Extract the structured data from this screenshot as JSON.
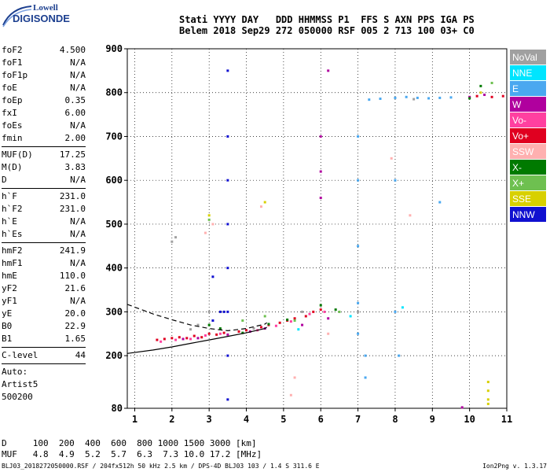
{
  "logo": {
    "line1": "Lowell",
    "line2": "DIGISONDE"
  },
  "header": {
    "line1": "Stati YYYY DAY   DDD HHMMSS P1  FFS S AXN PPS IGA PS",
    "line2": "Belem 2018 Sep29 272 050000 RSF 005 2 713 100 03+ C0"
  },
  "params": {
    "group1": [
      {
        "label": "foF2",
        "value": "4.500"
      },
      {
        "label": "foF1",
        "value": "N/A"
      },
      {
        "label": "foF1p",
        "value": "N/A"
      },
      {
        "label": "foE",
        "value": "N/A"
      },
      {
        "label": "foEp",
        "value": "0.35"
      },
      {
        "label": "fxI",
        "value": "6.00"
      },
      {
        "label": "foEs",
        "value": "N/A"
      },
      {
        "label": "fmin",
        "value": "2.00"
      }
    ],
    "group2": [
      {
        "label": "MUF(D)",
        "value": "17.25"
      },
      {
        "label": "M(D)",
        "value": "3.83"
      },
      {
        "label": "D",
        "value": "N/A"
      }
    ],
    "group3": [
      {
        "label": "h`F",
        "value": "231.0"
      },
      {
        "label": "h`F2",
        "value": "231.0"
      },
      {
        "label": "h`E",
        "value": "N/A"
      },
      {
        "label": "h`Es",
        "value": "N/A"
      }
    ],
    "group4": [
      {
        "label": "hmF2",
        "value": "241.9"
      },
      {
        "label": "hmF1",
        "value": "N/A"
      },
      {
        "label": "hmE",
        "value": "110.0"
      },
      {
        "label": "yF2",
        "value": "21.6"
      },
      {
        "label": "yF1",
        "value": "N/A"
      },
      {
        "label": "yE",
        "value": "20.0"
      },
      {
        "label": "B0",
        "value": "22.9"
      },
      {
        "label": "B1",
        "value": "1.65"
      }
    ],
    "group5": [
      {
        "label": "C-level",
        "value": "44"
      }
    ],
    "auto": [
      "Auto:",
      "Artist5",
      "500200"
    ]
  },
  "legend": [
    {
      "label": "NoVal",
      "color": "#a0a0a0"
    },
    {
      "label": "NNE",
      "color": "#00e5ff"
    },
    {
      "label": "E",
      "color": "#4aa8f0"
    },
    {
      "label": "W",
      "color": "#b0009e"
    },
    {
      "label": "Vo-",
      "color": "#ff40a0"
    },
    {
      "label": "Vo+",
      "color": "#e00020"
    },
    {
      "label": "SSW",
      "color": "#ffb0b0"
    },
    {
      "label": "X-",
      "color": "#007a00"
    },
    {
      "label": "X+",
      "color": "#6ec050"
    },
    {
      "label": "SSE",
      "color": "#d8d000"
    },
    {
      "label": "NNW",
      "color": "#1010d0"
    }
  ],
  "footer": {
    "d_line": "D     100  200  400  600  800 1000 1500 3000 [km]",
    "muf_line": "MUF   4.8  4.9  5.2  5.7  6.3  7.3 10.0 17.2 [MHz]",
    "file_line": "BLJ03_2018272050000.RSF / 204fx512h 50 kHz 2.5 km / DPS-4D BLJ03 103 / 1.4 S 311.6 E",
    "version": "Ion2Png v. 1.3.17"
  },
  "chart_data": {
    "type": "scatter",
    "title": "",
    "xlabel": "",
    "ylabel": "",
    "xlim": [
      0.8,
      11
    ],
    "ylim": [
      80,
      900
    ],
    "x_ticks": [
      "1",
      "2",
      "3",
      "4",
      "5",
      "6",
      "7",
      "8",
      "9",
      "10",
      "11"
    ],
    "y_ticks": [
      "80",
      "200",
      "300",
      "400",
      "500",
      "600",
      "700",
      "800",
      "900"
    ],
    "grid": true,
    "series": [
      {
        "name": "Vo+",
        "color": "#e00020",
        "points": [
          [
            1.6,
            236
          ],
          [
            1.8,
            238
          ],
          [
            2.0,
            240
          ],
          [
            2.2,
            242
          ],
          [
            2.4,
            240
          ],
          [
            2.6,
            245
          ],
          [
            2.8,
            242
          ],
          [
            3.0,
            250
          ],
          [
            3.2,
            248
          ],
          [
            3.4,
            252
          ],
          [
            3.8,
            255
          ],
          [
            4.0,
            258
          ],
          [
            4.2,
            262
          ],
          [
            4.4,
            265
          ],
          [
            4.6,
            270
          ],
          [
            4.9,
            275
          ],
          [
            5.1,
            280
          ],
          [
            5.3,
            285
          ],
          [
            5.6,
            290
          ],
          [
            5.8,
            300
          ],
          [
            6.0,
            305
          ],
          [
            10.2,
            792
          ],
          [
            10.6,
            790
          ],
          [
            10.9,
            792
          ]
        ]
      },
      {
        "name": "Vo-",
        "color": "#ff40a0",
        "points": [
          [
            1.7,
            232
          ],
          [
            2.1,
            236
          ],
          [
            2.5,
            238
          ],
          [
            2.9,
            246
          ],
          [
            3.3,
            250
          ],
          [
            4.3,
            258
          ],
          [
            4.8,
            268
          ],
          [
            5.2,
            278
          ],
          [
            5.7,
            295
          ],
          [
            6.1,
            300
          ]
        ]
      },
      {
        "name": "W",
        "color": "#b0009e",
        "points": [
          [
            2.3,
            238
          ],
          [
            2.7,
            240
          ],
          [
            3.5,
            248
          ],
          [
            4.1,
            255
          ],
          [
            4.5,
            262
          ],
          [
            5.5,
            270
          ],
          [
            6.2,
            285
          ],
          [
            6.0,
            700
          ],
          [
            6.0,
            620
          ],
          [
            6.0,
            560
          ],
          [
            6.2,
            850
          ],
          [
            9.8,
            82
          ],
          [
            10.0,
            790
          ],
          [
            10.4,
            795
          ]
        ]
      },
      {
        "name": "E",
        "color": "#4aa8f0",
        "points": [
          [
            7.0,
            250
          ],
          [
            7.0,
            320
          ],
          [
            7.0,
            450
          ],
          [
            7.0,
            600
          ],
          [
            7.0,
            700
          ],
          [
            7.2,
            150
          ],
          [
            7.2,
            200
          ],
          [
            7.3,
            784
          ],
          [
            7.6,
            786
          ],
          [
            8.0,
            788
          ],
          [
            8.3,
            790
          ],
          [
            8.6,
            788
          ],
          [
            8.9,
            787
          ],
          [
            9.2,
            788
          ],
          [
            9.5,
            789
          ],
          [
            8.0,
            300
          ],
          [
            8.0,
            600
          ],
          [
            8.1,
            200
          ],
          [
            9.2,
            550
          ]
        ]
      },
      {
        "name": "NNW",
        "color": "#1010d0",
        "points": [
          [
            3.1,
            280
          ],
          [
            3.1,
            380
          ],
          [
            3.3,
            300
          ],
          [
            3.5,
            850
          ],
          [
            3.5,
            700
          ],
          [
            3.5,
            600
          ],
          [
            3.5,
            500
          ],
          [
            3.5,
            400
          ],
          [
            3.5,
            300
          ],
          [
            3.5,
            200
          ],
          [
            3.5,
            100
          ],
          [
            3.4,
            300
          ]
        ]
      },
      {
        "name": "X-",
        "color": "#007a00",
        "points": [
          [
            3.0,
            270
          ],
          [
            3.3,
            262
          ],
          [
            3.9,
            252
          ],
          [
            4.6,
            272
          ],
          [
            5.1,
            282
          ],
          [
            6.0,
            315
          ],
          [
            6.4,
            305
          ],
          [
            10.3,
            815
          ],
          [
            10.0,
            787
          ]
        ]
      },
      {
        "name": "X+",
        "color": "#6ec050",
        "points": [
          [
            3.0,
            510
          ],
          [
            3.9,
            280
          ],
          [
            4.5,
            290
          ],
          [
            5.3,
            280
          ],
          [
            6.5,
            300
          ],
          [
            10.6,
            822
          ]
        ]
      },
      {
        "name": "SSE",
        "color": "#d8d000",
        "points": [
          [
            3.0,
            520
          ],
          [
            4.5,
            550
          ],
          [
            10.3,
            800
          ],
          [
            10.5,
            140
          ],
          [
            10.5,
            120
          ],
          [
            10.5,
            100
          ],
          [
            10.5,
            90
          ]
        ]
      },
      {
        "name": "SSW",
        "color": "#ffb0b0",
        "points": [
          [
            2.9,
            480
          ],
          [
            3.1,
            500
          ],
          [
            4.4,
            540
          ],
          [
            5.2,
            110
          ],
          [
            5.3,
            150
          ],
          [
            6.2,
            250
          ],
          [
            7.9,
            650
          ],
          [
            8.4,
            520
          ]
        ]
      },
      {
        "name": "NNE",
        "color": "#00e5ff",
        "points": [
          [
            5.4,
            260
          ],
          [
            6.8,
            290
          ],
          [
            8.2,
            310
          ]
        ]
      },
      {
        "name": "NoVal",
        "color": "#a0a0a0",
        "points": [
          [
            2.0,
            460
          ],
          [
            2.1,
            470
          ],
          [
            2.5,
            260
          ],
          [
            2.7,
            270
          ],
          [
            3.0,
            300
          ],
          [
            4.2,
            262
          ],
          [
            5.5,
            300
          ],
          [
            7.0,
            300
          ],
          [
            8.5,
            785
          ]
        ]
      }
    ],
    "curves": {
      "profile_solid": [
        [
          0.8,
          205
        ],
        [
          1.5,
          213
        ],
        [
          2.0,
          220
        ],
        [
          2.5,
          228
        ],
        [
          3.0,
          236
        ],
        [
          3.5,
          244
        ],
        [
          4.0,
          252
        ],
        [
          4.5,
          262
        ],
        [
          4.55,
          265
        ]
      ],
      "profile_dashed": [
        [
          0.8,
          317
        ],
        [
          1.5,
          295
        ],
        [
          2.0,
          282
        ],
        [
          2.5,
          270
        ],
        [
          3.0,
          262
        ],
        [
          3.5,
          257
        ],
        [
          4.0,
          262
        ],
        [
          4.5,
          272
        ],
        [
          4.55,
          275
        ]
      ]
    }
  }
}
